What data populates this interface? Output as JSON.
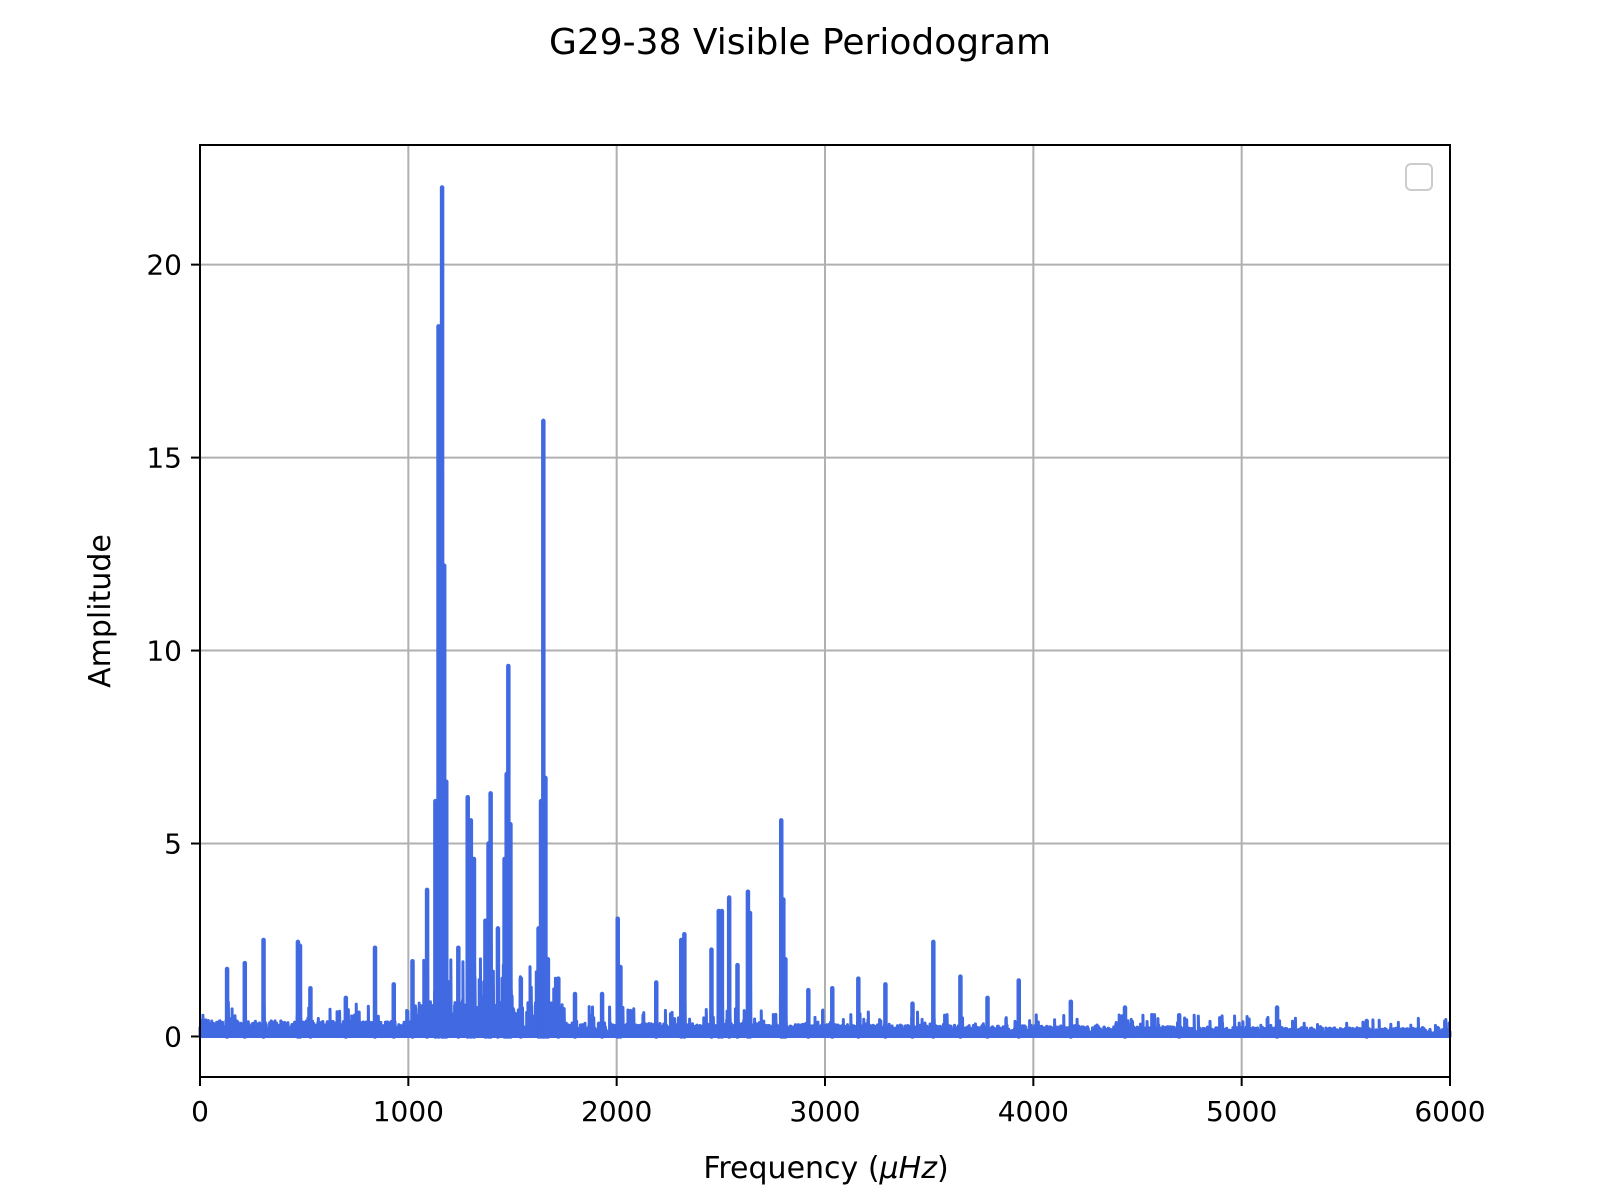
{
  "chart_data": {
    "type": "line",
    "title": "G29-38 Visible Periodogram",
    "xlabel_text": "Frequency (",
    "xlabel_unit": "μHz",
    "xlabel_close": ")",
    "ylabel": "Amplitude",
    "xlim": [
      0,
      6000
    ],
    "ylim": [
      -1.05,
      23.1
    ],
    "xticks": [
      0,
      1000,
      2000,
      3000,
      4000,
      5000,
      6000
    ],
    "xtick_labels": [
      "0",
      "1000",
      "2000",
      "3000",
      "4000",
      "5000",
      "6000"
    ],
    "yticks": [
      0,
      5,
      10,
      15,
      20
    ],
    "ytick_labels": [
      "0",
      "5",
      "10",
      "15",
      "20"
    ],
    "grid": true,
    "legend": {
      "placement": "top-right",
      "entries": []
    },
    "colors": {
      "line": "#4169e1",
      "grid": "#b0b0b0",
      "axes": "#000000"
    },
    "series": [
      {
        "peaks": [
          [
            130,
            1.75
          ],
          [
            215,
            1.9
          ],
          [
            305,
            2.5
          ],
          [
            470,
            2.45
          ],
          [
            480,
            2.35
          ],
          [
            530,
            1.25
          ],
          [
            700,
            1.0
          ],
          [
            840,
            2.3
          ],
          [
            930,
            1.35
          ],
          [
            1020,
            1.95
          ],
          [
            1090,
            3.8
          ],
          [
            1130,
            6.1
          ],
          [
            1145,
            18.4
          ],
          [
            1162,
            22.0
          ],
          [
            1172,
            12.2
          ],
          [
            1182,
            6.6
          ],
          [
            1240,
            2.3
          ],
          [
            1285,
            6.2
          ],
          [
            1300,
            5.6
          ],
          [
            1315,
            4.6
          ],
          [
            1370,
            3.0
          ],
          [
            1385,
            5.0
          ],
          [
            1395,
            6.3
          ],
          [
            1430,
            2.8
          ],
          [
            1462,
            4.6
          ],
          [
            1472,
            6.8
          ],
          [
            1480,
            9.6
          ],
          [
            1490,
            5.5
          ],
          [
            1540,
            1.5
          ],
          [
            1625,
            2.8
          ],
          [
            1637,
            6.1
          ],
          [
            1648,
            15.95
          ],
          [
            1658,
            6.7
          ],
          [
            1670,
            2.0
          ],
          [
            1720,
            1.5
          ],
          [
            1800,
            1.1
          ],
          [
            1930,
            1.1
          ],
          [
            2005,
            3.05
          ],
          [
            2018,
            1.8
          ],
          [
            2190,
            1.4
          ],
          [
            2310,
            2.5
          ],
          [
            2325,
            2.65
          ],
          [
            2455,
            2.25
          ],
          [
            2490,
            3.25
          ],
          [
            2505,
            3.25
          ],
          [
            2540,
            3.6
          ],
          [
            2580,
            1.85
          ],
          [
            2630,
            3.75
          ],
          [
            2640,
            3.2
          ],
          [
            2790,
            5.6
          ],
          [
            2800,
            3.55
          ],
          [
            2810,
            2.0
          ],
          [
            2920,
            1.2
          ],
          [
            3035,
            1.25
          ],
          [
            3160,
            1.5
          ],
          [
            3290,
            1.35
          ],
          [
            3420,
            0.85
          ],
          [
            3520,
            2.45
          ],
          [
            3650,
            1.55
          ],
          [
            3780,
            1.0
          ],
          [
            3930,
            1.45
          ],
          [
            4180,
            0.9
          ],
          [
            4440,
            0.75
          ],
          [
            4700,
            0.55
          ],
          [
            5170,
            0.75
          ],
          [
            5600,
            0.4
          ]
        ]
      }
    ]
  }
}
